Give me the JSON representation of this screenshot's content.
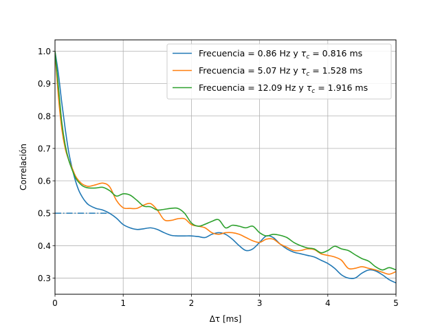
{
  "chart_data": {
    "type": "line",
    "title": "",
    "xlabel": "Δτ [ms]",
    "ylabel": "Correlación",
    "xlim": [
      0,
      5
    ],
    "ylim": [
      0.25,
      1.035
    ],
    "xticks": [
      0,
      1,
      2,
      3,
      4,
      5
    ],
    "yticks": [
      0.3,
      0.4,
      0.5,
      0.6,
      0.7,
      0.8,
      0.9,
      1.0
    ],
    "xtick_labels": [
      "0",
      "1",
      "2",
      "3",
      "4",
      "5"
    ],
    "ytick_labels": [
      "0.3",
      "0.4",
      "0.5",
      "0.6",
      "0.7",
      "0.8",
      "0.9",
      "1.0"
    ],
    "grid": true,
    "legend_position": "top-right",
    "series": [
      {
        "name": "Frecuencia = 0.86 Hz y τ_c = 0.816 ms",
        "legend_prefix": "Frecuencia = 0.86 Hz y ",
        "legend_suffix": " = 0.816 ms",
        "color": "#1f77b4",
        "x": [
          0,
          0.05,
          0.1,
          0.15,
          0.2,
          0.25,
          0.3,
          0.35,
          0.4,
          0.45,
          0.5,
          0.6,
          0.7,
          0.8,
          0.9,
          1.0,
          1.1,
          1.2,
          1.3,
          1.4,
          1.5,
          1.6,
          1.7,
          1.8,
          1.9,
          2.0,
          2.1,
          2.2,
          2.3,
          2.4,
          2.5,
          2.6,
          2.7,
          2.8,
          2.9,
          3.0,
          3.1,
          3.2,
          3.3,
          3.4,
          3.5,
          3.6,
          3.7,
          3.8,
          3.9,
          4.0,
          4.1,
          4.2,
          4.3,
          4.4,
          4.5,
          4.6,
          4.7,
          4.8,
          4.9,
          5.0
        ],
        "y": [
          1.0,
          0.93,
          0.84,
          0.76,
          0.69,
          0.64,
          0.6,
          0.57,
          0.55,
          0.535,
          0.525,
          0.515,
          0.51,
          0.5,
          0.485,
          0.465,
          0.455,
          0.45,
          0.452,
          0.455,
          0.45,
          0.44,
          0.432,
          0.43,
          0.43,
          0.43,
          0.428,
          0.425,
          0.435,
          0.44,
          0.435,
          0.42,
          0.4,
          0.385,
          0.39,
          0.41,
          0.43,
          0.425,
          0.405,
          0.39,
          0.38,
          0.375,
          0.37,
          0.365,
          0.355,
          0.345,
          0.33,
          0.31,
          0.3,
          0.3,
          0.315,
          0.325,
          0.322,
          0.31,
          0.295,
          0.285
        ]
      },
      {
        "name": "Frecuencia = 5.07 Hz y τ_c = 1.528 ms",
        "legend_prefix": "Frecuencia = 5.07 Hz y ",
        "legend_suffix": " = 1.528 ms",
        "color": "#ff7f0e",
        "x": [
          0,
          0.05,
          0.1,
          0.15,
          0.2,
          0.25,
          0.3,
          0.35,
          0.4,
          0.45,
          0.5,
          0.6,
          0.7,
          0.8,
          0.9,
          1.0,
          1.1,
          1.2,
          1.3,
          1.4,
          1.5,
          1.6,
          1.7,
          1.8,
          1.9,
          2.0,
          2.1,
          2.2,
          2.3,
          2.4,
          2.5,
          2.6,
          2.7,
          2.8,
          2.9,
          3.0,
          3.1,
          3.2,
          3.3,
          3.4,
          3.5,
          3.6,
          3.7,
          3.8,
          3.9,
          4.0,
          4.1,
          4.2,
          4.3,
          4.4,
          4.5,
          4.6,
          4.7,
          4.8,
          4.9,
          5.0
        ],
        "y": [
          1.0,
          0.86,
          0.76,
          0.7,
          0.665,
          0.64,
          0.615,
          0.6,
          0.59,
          0.585,
          0.583,
          0.588,
          0.593,
          0.582,
          0.54,
          0.517,
          0.515,
          0.515,
          0.525,
          0.53,
          0.51,
          0.48,
          0.478,
          0.483,
          0.483,
          0.465,
          0.46,
          0.455,
          0.44,
          0.435,
          0.44,
          0.44,
          0.435,
          0.425,
          0.415,
          0.41,
          0.42,
          0.42,
          0.405,
          0.395,
          0.385,
          0.385,
          0.39,
          0.388,
          0.375,
          0.37,
          0.365,
          0.355,
          0.33,
          0.33,
          0.335,
          0.33,
          0.325,
          0.318,
          0.312,
          0.32
        ]
      },
      {
        "name": "Frecuencia = 12.09 Hz y τ_c = 1.916 ms",
        "legend_prefix": "Frecuencia = 12.09 Hz y ",
        "legend_suffix": " = 1.916 ms",
        "color": "#2ca02c",
        "x": [
          0,
          0.05,
          0.1,
          0.15,
          0.2,
          0.25,
          0.3,
          0.35,
          0.4,
          0.45,
          0.5,
          0.6,
          0.7,
          0.8,
          0.9,
          1.0,
          1.1,
          1.2,
          1.3,
          1.4,
          1.5,
          1.6,
          1.7,
          1.8,
          1.9,
          2.0,
          2.1,
          2.2,
          2.3,
          2.4,
          2.5,
          2.6,
          2.7,
          2.8,
          2.9,
          3.0,
          3.1,
          3.2,
          3.3,
          3.4,
          3.5,
          3.6,
          3.7,
          3.8,
          3.9,
          4.0,
          4.1,
          4.2,
          4.3,
          4.4,
          4.5,
          4.6,
          4.7,
          4.8,
          4.9,
          5.0
        ],
        "y": [
          1.0,
          0.89,
          0.78,
          0.71,
          0.665,
          0.635,
          0.61,
          0.595,
          0.585,
          0.58,
          0.578,
          0.578,
          0.58,
          0.57,
          0.553,
          0.56,
          0.556,
          0.54,
          0.522,
          0.52,
          0.51,
          0.512,
          0.515,
          0.515,
          0.5,
          0.47,
          0.46,
          0.466,
          0.475,
          0.48,
          0.455,
          0.463,
          0.46,
          0.455,
          0.46,
          0.44,
          0.43,
          0.435,
          0.432,
          0.425,
          0.41,
          0.4,
          0.393,
          0.39,
          0.378,
          0.385,
          0.398,
          0.39,
          0.385,
          0.372,
          0.36,
          0.352,
          0.335,
          0.325,
          0.332,
          0.325
        ]
      }
    ],
    "reference_line": {
      "y": 0.5,
      "x_start": 0,
      "x_end": 0.82,
      "style": "dashdot",
      "color": "#1f77b4"
    }
  }
}
